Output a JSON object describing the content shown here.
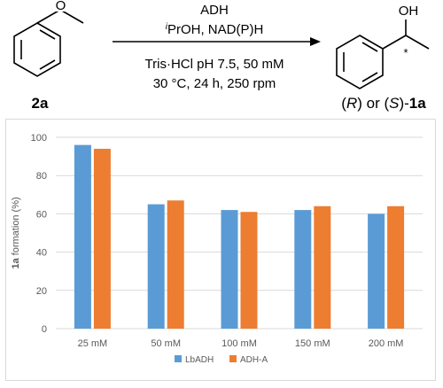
{
  "scheme": {
    "reactant_label": "2a",
    "reactant_o": "O",
    "above_line1": "ADH",
    "above_line2_sup": "i",
    "above_line2_rest": "PrOH, NAD(P)H",
    "below_line1": "Tris·HCl pH 7.5, 50 mM",
    "below_line2": "30 °C, 24 h, 250 rpm",
    "product_oh": "OH",
    "product_star": "*",
    "product_label_pre1": "(",
    "product_label_r": "R",
    "product_label_mid": ") or (",
    "product_label_s": "S",
    "product_label_post": ")-",
    "product_label_bold": "1a"
  },
  "chart_data": {
    "type": "bar",
    "categories": [
      "25 mM",
      "50 mM",
      "100 mM",
      "150 mM",
      "200 mM"
    ],
    "series": [
      {
        "name": "LbADH",
        "color": "#5b9bd5",
        "values": [
          96,
          65,
          62,
          62,
          60
        ]
      },
      {
        "name": "ADH-A",
        "color": "#ed7d31",
        "values": [
          94,
          67,
          61,
          64,
          64
        ]
      }
    ],
    "ylabel_bold": "1a",
    "ylabel_rest": " formation (%)",
    "ylim": [
      0,
      100
    ],
    "yticks": [
      0,
      20,
      40,
      60,
      80,
      100
    ],
    "grid": true,
    "legend": "bottom-center",
    "grid_color": "#d9d9d9"
  }
}
